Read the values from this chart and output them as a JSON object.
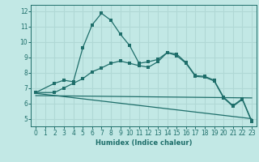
{
  "xlabel": "Humidex (Indice chaleur)",
  "bg_color": "#c2e8e5",
  "grid_color": "#b0d8d5",
  "line_color": "#1e6e6a",
  "xlim": [
    -0.5,
    23.5
  ],
  "ylim": [
    4.5,
    12.4
  ],
  "xticks": [
    0,
    1,
    2,
    3,
    4,
    5,
    6,
    7,
    8,
    9,
    10,
    11,
    12,
    13,
    14,
    15,
    16,
    17,
    18,
    19,
    20,
    21,
    22,
    23
  ],
  "yticks": [
    5,
    6,
    7,
    8,
    9,
    10,
    11,
    12
  ],
  "line1_x": [
    0,
    2,
    3,
    4,
    5,
    6,
    7,
    8,
    9,
    10,
    11,
    12,
    13,
    14,
    15,
    16,
    17,
    18,
    19,
    20,
    21,
    22,
    23
  ],
  "line1_y": [
    6.7,
    7.3,
    7.5,
    7.4,
    9.6,
    11.1,
    11.85,
    11.4,
    10.5,
    9.75,
    8.6,
    8.7,
    8.85,
    9.3,
    9.2,
    8.65,
    7.8,
    7.75,
    7.5,
    6.4,
    5.85,
    6.3,
    4.85
  ],
  "line2_x": [
    0,
    2,
    3,
    4,
    5,
    6,
    7,
    8,
    9,
    10,
    11,
    12,
    13,
    14,
    15,
    16,
    17,
    18,
    19,
    20,
    21,
    22,
    23
  ],
  "line2_y": [
    6.7,
    6.7,
    7.0,
    7.3,
    7.6,
    8.05,
    8.3,
    8.6,
    8.75,
    8.6,
    8.45,
    8.35,
    8.7,
    9.3,
    9.1,
    8.6,
    7.75,
    7.7,
    7.45,
    6.35,
    5.8,
    6.25,
    4.8
  ],
  "line3_x": [
    0,
    23
  ],
  "line3_y": [
    6.65,
    5.0
  ],
  "line4_x": [
    0,
    23
  ],
  "line4_y": [
    6.5,
    6.35
  ]
}
